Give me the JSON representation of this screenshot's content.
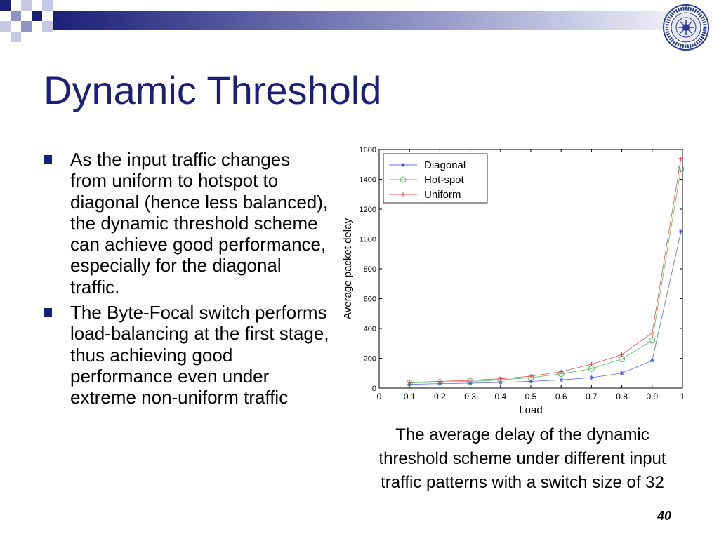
{
  "slide": {
    "title": "Dynamic Threshold",
    "page_number": "40",
    "bullets": [
      "As the input traffic changes from uniform to hotspot to diagonal (hence less balanced), the dynamic threshold scheme can achieve good performance, especially for the diagonal traffic.",
      "The Byte-Focal switch performs load-balancing at the first stage, thus achieving good performance even under extreme non-uniform traffic"
    ],
    "caption_lines": [
      "The average delay of the dynamic",
      "threshold scheme under different input",
      "traffic patterns with a switch size of 32"
    ]
  },
  "colors": {
    "title": "#1b1f78",
    "bullet_marker": "#1b1f78",
    "diagonal": "#3344ee",
    "hotspot": "#33aa44",
    "uniform": "#ee2222"
  },
  "chart_data": {
    "type": "line",
    "xlabel": "Load",
    "ylabel": "Average packet delay",
    "xlim": [
      0,
      1
    ],
    "ylim": [
      0,
      1600
    ],
    "x_ticks": [
      0,
      0.1,
      0.2,
      0.3,
      0.4,
      0.5,
      0.6,
      0.7,
      0.8,
      0.9,
      1
    ],
    "x_tick_labels": [
      "0",
      "0.1",
      "0.2",
      "0.3",
      "0.4",
      "0.5",
      "0.6",
      "0.7",
      "0.8",
      "0.9",
      "1"
    ],
    "y_ticks": [
      0,
      200,
      400,
      600,
      800,
      1000,
      1200,
      1400,
      1600
    ],
    "y_tick_labels": [
      "0",
      "200",
      "400",
      "600",
      "800",
      "1000",
      "1200",
      "1400",
      "1600"
    ],
    "legend_position": "top-left",
    "grid": false,
    "series": [
      {
        "name": "Diagonal",
        "marker": "star",
        "x": [
          0.1,
          0.2,
          0.3,
          0.4,
          0.5,
          0.6,
          0.7,
          0.8,
          0.9,
          0.995
        ],
        "y": [
          25,
          30,
          33,
          38,
          45,
          55,
          70,
          100,
          185,
          1050
        ]
      },
      {
        "name": "Hot-spot",
        "marker": "circle",
        "x": [
          0.1,
          0.2,
          0.3,
          0.4,
          0.5,
          0.6,
          0.7,
          0.8,
          0.9,
          0.995
        ],
        "y": [
          35,
          40,
          45,
          55,
          70,
          95,
          130,
          195,
          320,
          1470
        ]
      },
      {
        "name": "Uniform",
        "marker": "plus",
        "x": [
          0.1,
          0.2,
          0.3,
          0.4,
          0.5,
          0.6,
          0.7,
          0.8,
          0.9,
          0.995
        ],
        "y": [
          38,
          45,
          52,
          62,
          80,
          110,
          160,
          225,
          370,
          1540
        ]
      }
    ]
  }
}
